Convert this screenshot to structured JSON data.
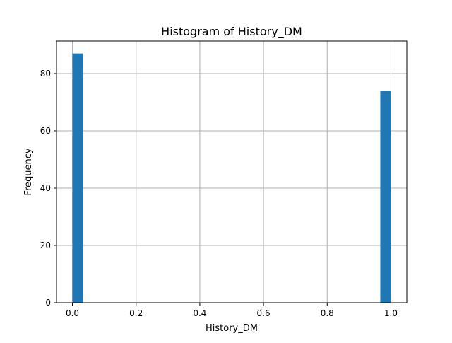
{
  "chart_data": {
    "type": "bar",
    "title": "Histogram of History_DM",
    "xlabel": "History_DM",
    "ylabel": "Frequency",
    "xlim": [
      -0.05,
      1.05
    ],
    "ylim": [
      0,
      91.35
    ],
    "bins": 30,
    "bin_range": [
      0,
      1
    ],
    "x_ticks": [
      0.0,
      0.2,
      0.4,
      0.6,
      0.8,
      1.0
    ],
    "x_tick_labels": [
      "0.0",
      "0.2",
      "0.4",
      "0.6",
      "0.8",
      "1.0"
    ],
    "y_ticks": [
      0,
      20,
      40,
      60,
      80
    ],
    "y_tick_labels": [
      "0",
      "20",
      "40",
      "60",
      "80"
    ],
    "bars": [
      {
        "x_start": 0.0,
        "x_end": 0.0333,
        "value": 87
      },
      {
        "x_start": 0.9667,
        "x_end": 1.0,
        "value": 74
      }
    ],
    "grid": true,
    "bar_color": "#1f77b4",
    "grid_color": "#b0b0b0"
  }
}
